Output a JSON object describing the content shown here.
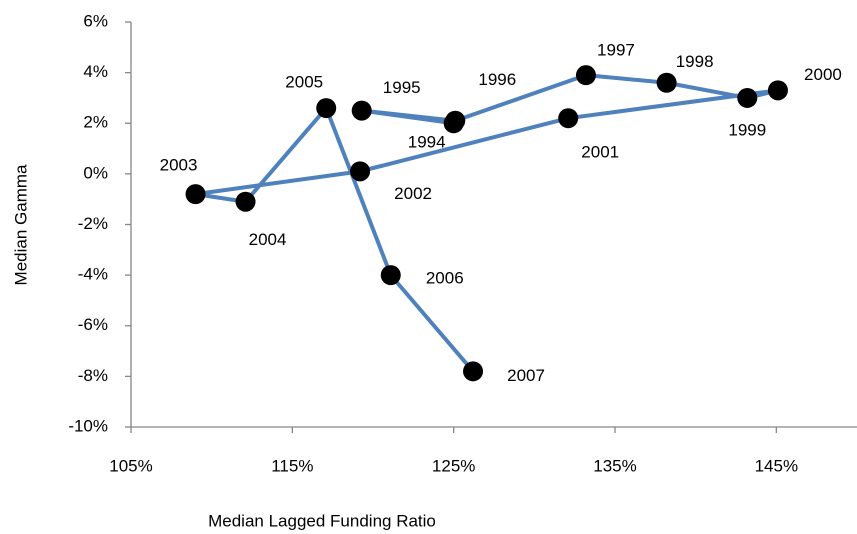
{
  "chart_data": {
    "type": "connected-scatter",
    "x_label": "Median Lagged Funding Ratio",
    "y_label": "Median Gamma",
    "xlim": [
      105,
      150
    ],
    "ylim": [
      -10,
      6
    ],
    "xticks": [
      {
        "value": 105,
        "label": "105%"
      },
      {
        "value": 115,
        "label": "115%"
      },
      {
        "value": 125,
        "label": "125%"
      },
      {
        "value": 135,
        "label": "135%"
      },
      {
        "value": 145,
        "label": "145%"
      }
    ],
    "yticks": [
      {
        "value": -10,
        "label": "-10%"
      },
      {
        "value": -8,
        "label": "-8%"
      },
      {
        "value": -6,
        "label": "-6%"
      },
      {
        "value": -4,
        "label": "-4%"
      },
      {
        "value": -2,
        "label": "-2%"
      },
      {
        "value": 0,
        "label": "0%"
      },
      {
        "value": 2,
        "label": "2%"
      },
      {
        "value": 4,
        "label": "4%"
      },
      {
        "value": 6,
        "label": "6%"
      }
    ],
    "grid": false,
    "line_color": "#4f81bd",
    "marker_color": "#000000",
    "series": [
      {
        "point_labels": [
          "1994",
          "1995",
          "1996",
          "1997",
          "1998",
          "1999",
          "2000",
          "2001",
          "2002",
          "2003",
          "2004",
          "2005",
          "2006",
          "2007"
        ],
        "x": [
          125.0,
          119.3,
          125.1,
          133.2,
          138.2,
          143.2,
          145.1,
          132.1,
          119.2,
          109.0,
          112.1,
          117.1,
          121.1,
          126.2
        ],
        "values": [
          2.0,
          2.5,
          2.1,
          3.9,
          3.6,
          3.0,
          3.3,
          2.2,
          0.1,
          -0.8,
          -1.1,
          2.6,
          -4.0,
          -7.8
        ]
      }
    ]
  }
}
